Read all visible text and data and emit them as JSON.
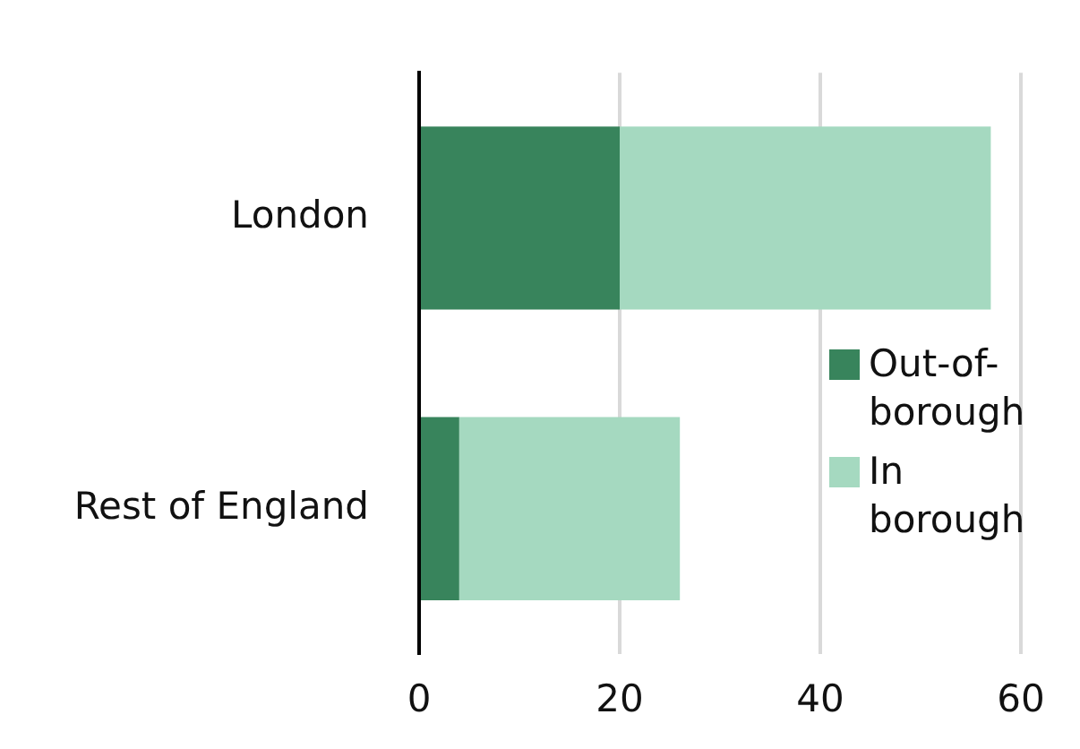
{
  "chart_data": {
    "type": "bar",
    "orientation": "horizontal",
    "stacked": true,
    "categories": [
      "London",
      "Rest of England"
    ],
    "series": [
      {
        "name": "Out-of-borough",
        "color": "#38845c",
        "values": [
          20,
          4
        ]
      },
      {
        "name": "In borough",
        "color": "#a5d9c0",
        "values": [
          37,
          22
        ]
      }
    ],
    "xlim": [
      0,
      60
    ],
    "xticks": [
      0,
      20,
      40,
      60
    ],
    "grid": "x",
    "legend": "right"
  }
}
